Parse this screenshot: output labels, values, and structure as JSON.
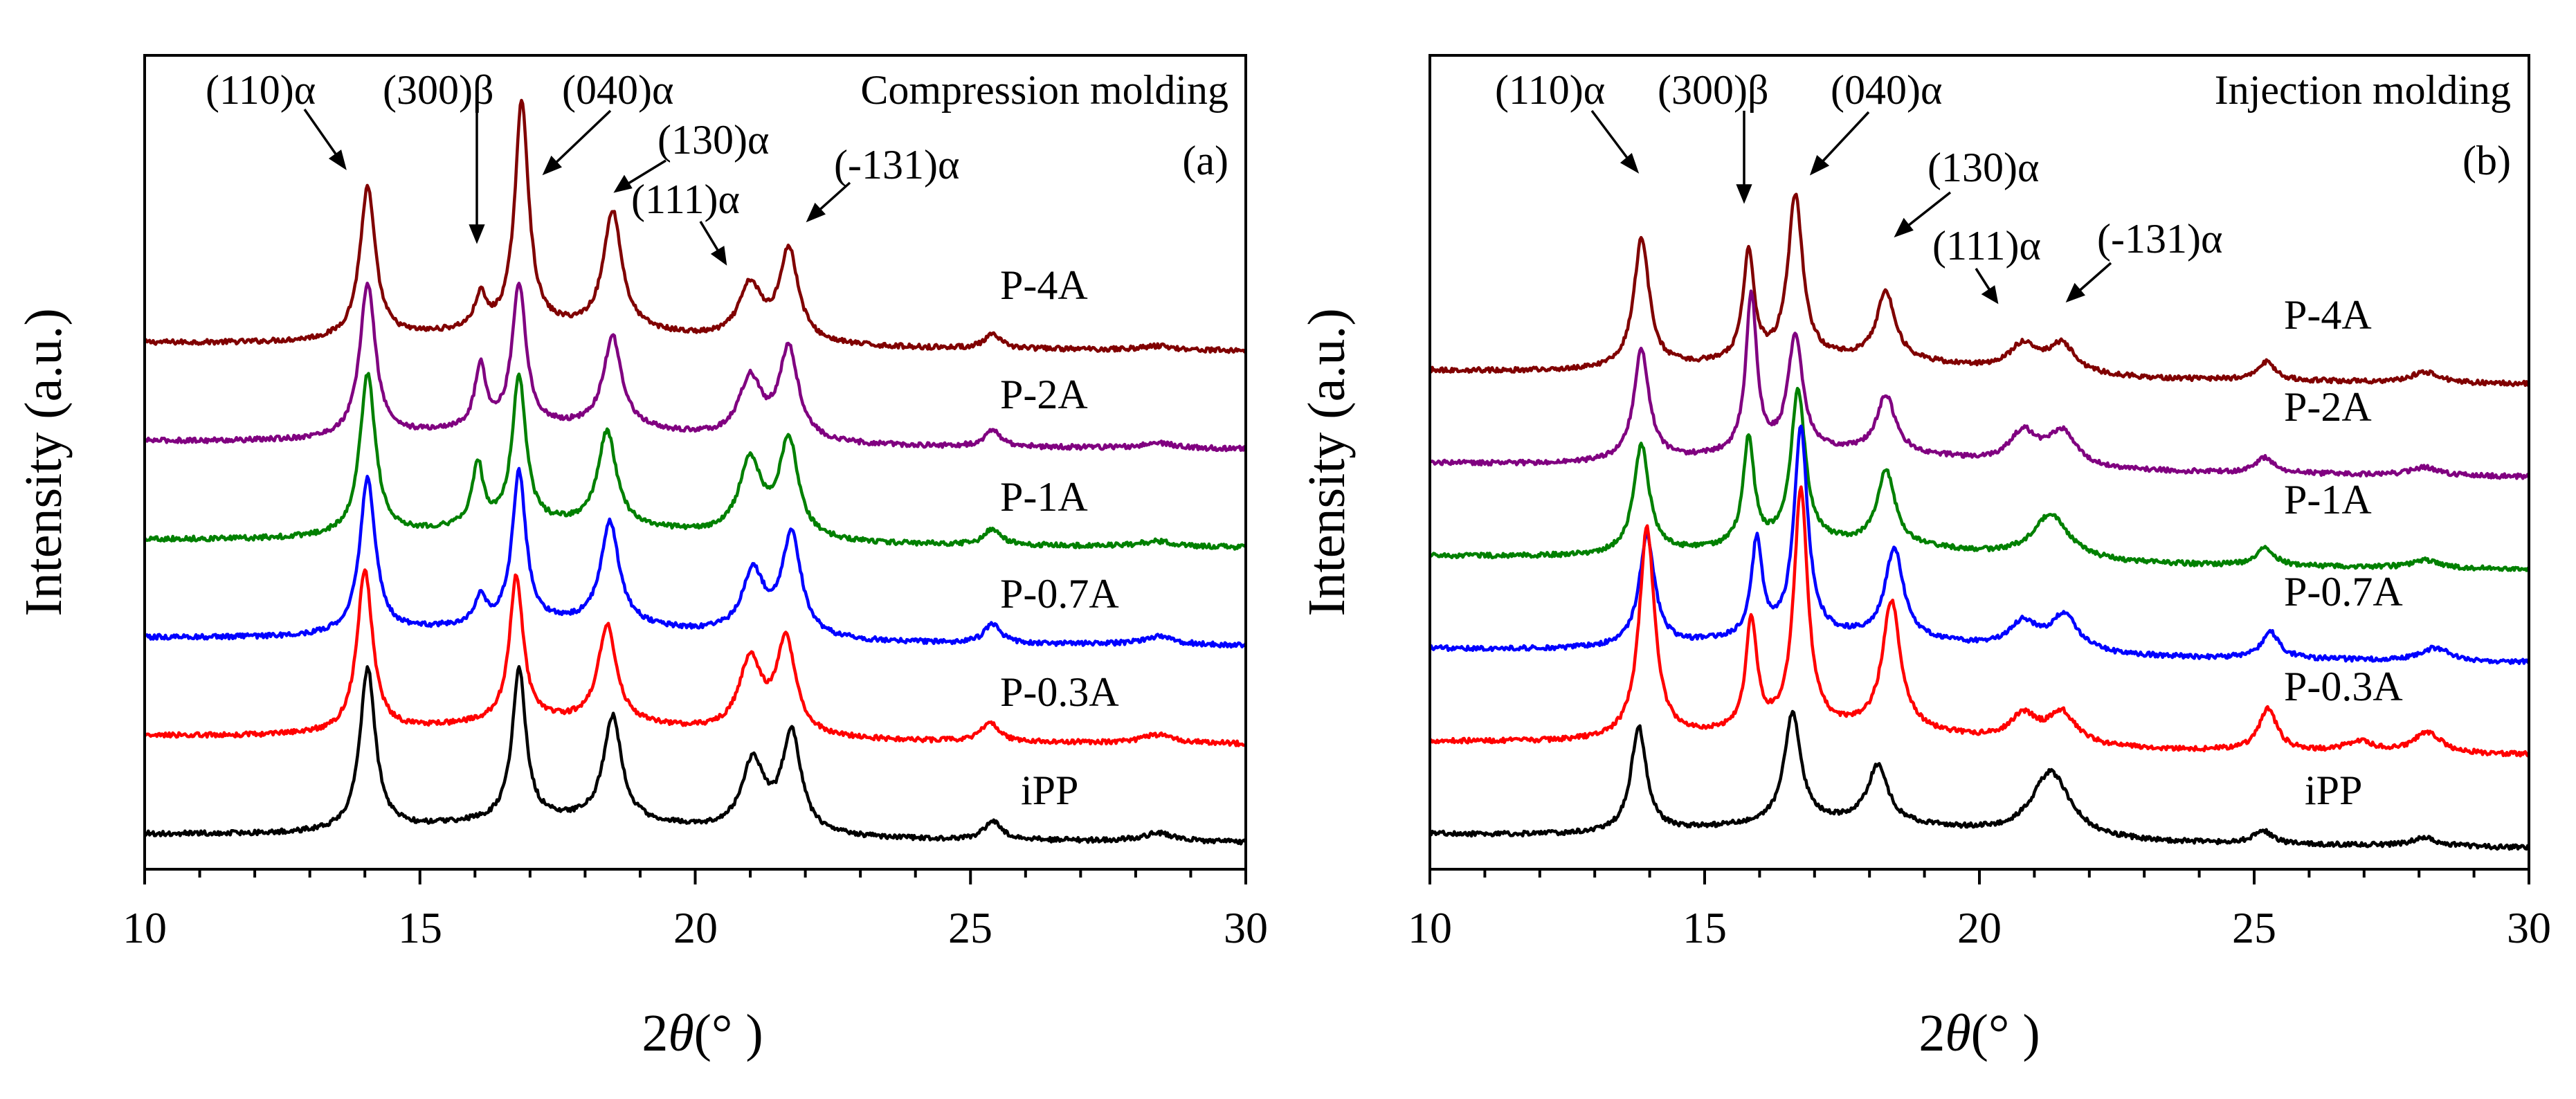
{
  "chart_data": [
    {
      "type": "line",
      "panel": "(a)",
      "title": "Compression molding",
      "xlabel_prefix": "2",
      "xlabel_symbol": "θ",
      "xlabel_unit": "(°   )",
      "ylabel": "Intensity (a.u.)",
      "xlim": [
        10,
        30
      ],
      "xticks": [
        "10",
        "15",
        "20",
        "25",
        "30"
      ],
      "yticks_labeled": false,
      "series": [
        {
          "name": "P-4A",
          "color": "#800000",
          "offset": 5,
          "peaks": [
            [
              14.05,
              0.56,
              0.17
            ],
            [
              16.1,
              0.12,
              0.12
            ],
            [
              16.85,
              0.84,
              0.15
            ],
            [
              18.5,
              0.44,
              0.2
            ],
            [
              21.0,
              0.2,
              0.25
            ],
            [
              21.7,
              0.34,
              0.21
            ],
            [
              25.4,
              0.05,
              0.18
            ],
            [
              28.4,
              0.015,
              0.35
            ]
          ]
        },
        {
          "name": "P-2A",
          "color": "#800080",
          "offset": 4,
          "peaks": [
            [
              14.05,
              0.57,
              0.17
            ],
            [
              16.1,
              0.23,
              0.12
            ],
            [
              16.8,
              0.53,
              0.15
            ],
            [
              18.5,
              0.34,
              0.2
            ],
            [
              21.0,
              0.22,
              0.25
            ],
            [
              21.7,
              0.34,
              0.21
            ],
            [
              25.4,
              0.06,
              0.18
            ],
            [
              28.4,
              0.02,
              0.35
            ]
          ]
        },
        {
          "name": "P-1A",
          "color": "#008000",
          "offset": 3,
          "peaks": [
            [
              14.05,
              0.6,
              0.17
            ],
            [
              16.05,
              0.23,
              0.12
            ],
            [
              16.8,
              0.55,
              0.15
            ],
            [
              18.4,
              0.35,
              0.2
            ],
            [
              21.0,
              0.28,
              0.25
            ],
            [
              21.7,
              0.36,
              0.21
            ],
            [
              25.4,
              0.06,
              0.18
            ],
            [
              28.4,
              0.02,
              0.35
            ]
          ]
        },
        {
          "name": "P-0.7A",
          "color": "#0000ff",
          "offset": 2,
          "peaks": [
            [
              14.05,
              0.58,
              0.17
            ],
            [
              16.1,
              0.1,
              0.12
            ],
            [
              16.8,
              0.56,
              0.15
            ],
            [
              18.45,
              0.38,
              0.2
            ],
            [
              21.05,
              0.23,
              0.25
            ],
            [
              21.75,
              0.38,
              0.21
            ],
            [
              25.4,
              0.07,
              0.18
            ],
            [
              28.4,
              0.03,
              0.35
            ]
          ]
        },
        {
          "name": "P-0.3A",
          "color": "#ff0000",
          "offset": 1,
          "peaks": [
            [
              14.0,
              0.6,
              0.17
            ],
            [
              16.75,
              0.54,
              0.15
            ],
            [
              18.4,
              0.36,
              0.2
            ],
            [
              21.0,
              0.27,
              0.25
            ],
            [
              21.65,
              0.35,
              0.21
            ],
            [
              25.35,
              0.07,
              0.18
            ],
            [
              28.4,
              0.03,
              0.35
            ]
          ]
        },
        {
          "name": "iPP",
          "color": "#000000",
          "offset": 0,
          "peaks": [
            [
              14.05,
              0.6,
              0.17
            ],
            [
              16.8,
              0.56,
              0.15
            ],
            [
              18.5,
              0.39,
              0.2
            ],
            [
              21.05,
              0.26,
              0.25
            ],
            [
              21.75,
              0.37,
              0.21
            ],
            [
              25.4,
              0.07,
              0.18
            ],
            [
              28.4,
              0.03,
              0.35
            ]
          ]
        }
      ],
      "annotations": [
        {
          "text": "(110)α",
          "x": 14.05
        },
        {
          "text": "(300)β",
          "x": 16.1
        },
        {
          "text": "(040)α",
          "x": 16.85
        },
        {
          "text": "(130)α",
          "x": 18.5
        },
        {
          "text": "(111)α",
          "x": 21.0
        },
        {
          "text": "(-131)α",
          "x": 21.7
        }
      ]
    },
    {
      "type": "line",
      "panel": "(b)",
      "title": "Injection molding",
      "xlabel_prefix": "2",
      "xlabel_symbol": "θ",
      "xlabel_unit": "(°   )",
      "ylabel": "Intensity (a.u.)",
      "xlim": [
        10,
        30
      ],
      "xticks": [
        "10",
        "15",
        "20",
        "25",
        "30"
      ],
      "yticks_labeled": false,
      "series": [
        {
          "name": "P-4A",
          "color": "#800000",
          "offset": 5,
          "peaks": [
            [
              13.85,
              0.49,
              0.17
            ],
            [
              15.8,
              0.41,
              0.12
            ],
            [
              16.65,
              0.62,
              0.16
            ],
            [
              18.3,
              0.26,
              0.2
            ],
            [
              20.8,
              0.1,
              0.3
            ],
            [
              21.5,
              0.11,
              0.3
            ],
            [
              25.2,
              0.07,
              0.2
            ],
            [
              28.1,
              0.04,
              0.3
            ]
          ]
        },
        {
          "name": "P-2A",
          "color": "#800080",
          "offset": 4,
          "peaks": [
            [
              13.85,
              0.42,
              0.17
            ],
            [
              15.85,
              0.6,
              0.12
            ],
            [
              16.65,
              0.44,
              0.16
            ],
            [
              18.3,
              0.22,
              0.2
            ],
            [
              20.8,
              0.12,
              0.3
            ],
            [
              21.5,
              0.13,
              0.3
            ],
            [
              25.2,
              0.06,
              0.2
            ],
            [
              28.1,
              0.03,
              0.3
            ]
          ]
        },
        {
          "name": "P-1A",
          "color": "#008000",
          "offset": 3,
          "peaks": [
            [
              13.85,
              0.41,
              0.17
            ],
            [
              15.8,
              0.41,
              0.12
            ],
            [
              16.7,
              0.58,
              0.16
            ],
            [
              18.3,
              0.28,
              0.2
            ],
            [
              21.3,
              0.17,
              0.4
            ],
            [
              25.2,
              0.07,
              0.2
            ],
            [
              28.1,
              0.03,
              0.3
            ]
          ]
        },
        {
          "name": "P-0.7A",
          "color": "#0000ff",
          "offset": 2,
          "peaks": [
            [
              13.95,
              0.42,
              0.17
            ],
            [
              15.95,
              0.37,
              0.12
            ],
            [
              16.75,
              0.79,
              0.15
            ],
            [
              18.45,
              0.34,
              0.2
            ],
            [
              20.8,
              0.1,
              0.3
            ],
            [
              21.55,
              0.14,
              0.3
            ],
            [
              25.3,
              0.1,
              0.2
            ],
            [
              28.3,
              0.05,
              0.3
            ]
          ]
        },
        {
          "name": "P-0.3A",
          "color": "#ff0000",
          "offset": 1,
          "peaks": [
            [
              13.95,
              0.8,
              0.17
            ],
            [
              15.85,
              0.42,
              0.12
            ],
            [
              16.75,
              0.91,
              0.15
            ],
            [
              18.4,
              0.49,
              0.2
            ],
            [
              20.8,
              0.1,
              0.3
            ],
            [
              21.5,
              0.12,
              0.3
            ],
            [
              25.25,
              0.16,
              0.2
            ],
            [
              26.9,
              0.04,
              0.3
            ],
            [
              28.15,
              0.08,
              0.3
            ]
          ]
        },
        {
          "name": "iPP",
          "color": "#000000",
          "offset": 0,
          "peaks": [
            [
              13.8,
              0.4,
              0.17
            ],
            [
              16.6,
              0.42,
              0.18
            ],
            [
              18.15,
              0.22,
              0.22
            ],
            [
              21.3,
              0.25,
              0.42
            ],
            [
              25.15,
              0.05,
              0.2
            ],
            [
              28.1,
              0.03,
              0.3
            ]
          ]
        }
      ],
      "annotations": [
        {
          "text": "(110)α",
          "x": 13.85
        },
        {
          "text": "(300)β",
          "x": 15.8
        },
        {
          "text": "(040)α",
          "x": 16.65
        },
        {
          "text": "(130)α",
          "x": 18.3
        },
        {
          "text": "(111)α",
          "x": 20.8
        },
        {
          "text": "(-131)α",
          "x": 21.5
        }
      ]
    }
  ]
}
